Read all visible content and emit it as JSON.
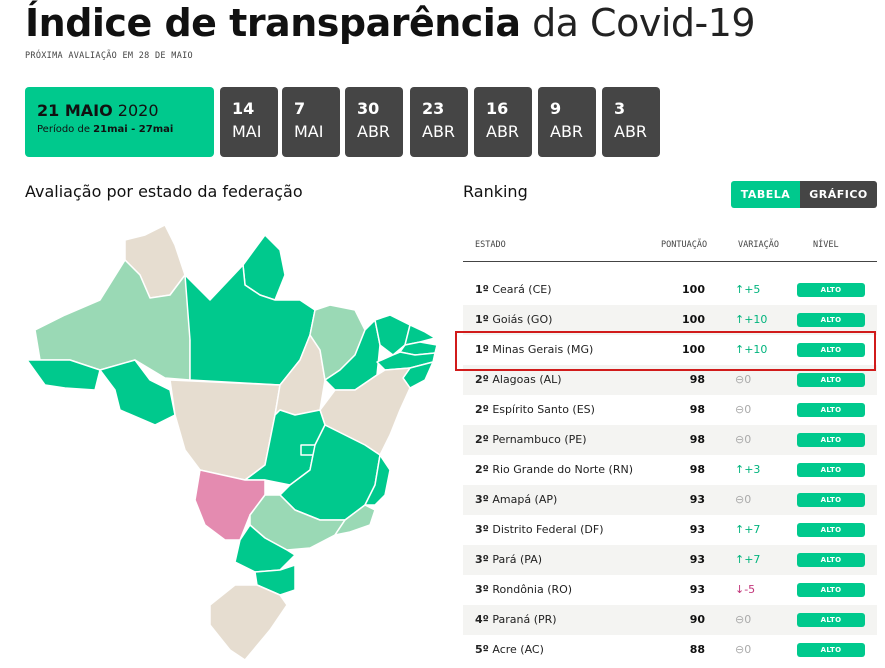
{
  "header": {
    "title_bold": "Índice de transparência",
    "title_light": " da Covid-19",
    "next_eval": "PRÓXIMA AVALIAÇÃO EM 28 DE MAIO"
  },
  "dates": {
    "active": {
      "day_month": "21 MAIO",
      "year": " 2020",
      "period_prefix": "Período de ",
      "period_range": "21mai - 27mai"
    },
    "tabs": [
      {
        "day": "14",
        "month": "MAI"
      },
      {
        "day": "7",
        "month": "MAI"
      },
      {
        "day": "30",
        "month": "ABR"
      },
      {
        "day": "23",
        "month": "ABR"
      },
      {
        "day": "16",
        "month": "ABR"
      },
      {
        "day": "9",
        "month": "ABR"
      },
      {
        "day": "3",
        "month": "ABR"
      }
    ]
  },
  "map_section": {
    "heading": "Avaliação por estado da federação"
  },
  "ranking": {
    "heading": "Ranking",
    "toggle_table": "TABELA",
    "toggle_chart": "GRÁFICO",
    "columns": {
      "state": "ESTADO",
      "score": "PONTUAÇÃO",
      "variation": "VARIAÇÃO",
      "level": "NÍVEL"
    },
    "rows": [
      {
        "rank": "1º",
        "state": "Ceará (CE)",
        "score": "100",
        "variation": "↑+5",
        "trend": "up",
        "level": "ALTO"
      },
      {
        "rank": "1º",
        "state": "Goiás (GO)",
        "score": "100",
        "variation": "↑+10",
        "trend": "up",
        "level": "ALTO"
      },
      {
        "rank": "1º",
        "state": "Minas Gerais (MG)",
        "score": "100",
        "variation": "↑+10",
        "trend": "up",
        "level": "ALTO"
      },
      {
        "rank": "2º",
        "state": "Alagoas (AL)",
        "score": "98",
        "variation": "⊖0",
        "trend": "zero",
        "level": "ALTO"
      },
      {
        "rank": "2º",
        "state": "Espírito Santo (ES)",
        "score": "98",
        "variation": "⊖0",
        "trend": "zero",
        "level": "ALTO"
      },
      {
        "rank": "2º",
        "state": "Pernambuco (PE)",
        "score": "98",
        "variation": "⊖0",
        "trend": "zero",
        "level": "ALTO"
      },
      {
        "rank": "2º",
        "state": "Rio Grande do Norte (RN)",
        "score": "98",
        "variation": "↑+3",
        "trend": "up",
        "level": "ALTO"
      },
      {
        "rank": "3º",
        "state": "Amapá (AP)",
        "score": "93",
        "variation": "⊖0",
        "trend": "zero",
        "level": "ALTO"
      },
      {
        "rank": "3º",
        "state": "Distrito Federal (DF)",
        "score": "93",
        "variation": "↑+7",
        "trend": "up",
        "level": "ALTO"
      },
      {
        "rank": "3º",
        "state": "Pará (PA)",
        "score": "93",
        "variation": "↑+7",
        "trend": "up",
        "level": "ALTO"
      },
      {
        "rank": "3º",
        "state": "Rondônia (RO)",
        "score": "93",
        "variation": "↓-5",
        "trend": "down",
        "level": "ALTO"
      },
      {
        "rank": "4º",
        "state": "Paraná (PR)",
        "score": "90",
        "variation": "⊖0",
        "trend": "zero",
        "level": "ALTO"
      },
      {
        "rank": "5º",
        "state": "Acre (AC)",
        "score": "88",
        "variation": "⊖0",
        "trend": "zero",
        "level": "ALTO"
      }
    ]
  },
  "colors": {
    "accent": "#00c98d",
    "dark_tab": "#454545",
    "map_high": "#00c98d",
    "map_medium": "#9ad9b5",
    "map_low": "#e6ddd0",
    "map_selected": "#e48bb0",
    "highlight_border": "#d11b1b"
  }
}
